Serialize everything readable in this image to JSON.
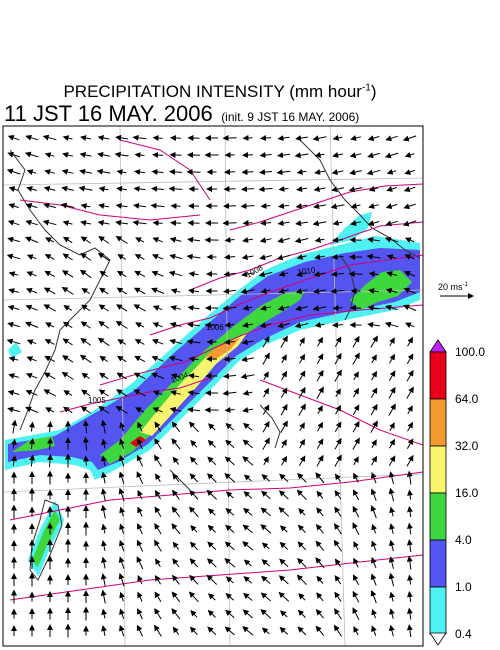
{
  "title": {
    "prefix": "PRECIPITATION INTENSITY (mm hour",
    "exp": "-1",
    "suffix": ")"
  },
  "subtitle": {
    "main": "11 JST 16 MAY. 2006",
    "init": "(init. 9 JST 16 MAY. 2006)"
  },
  "wind_scale": {
    "value": "20 ms",
    "exp": "-1"
  },
  "legend": {
    "levels": [
      "100.0",
      "64.0",
      "32.0",
      "16.0",
      "4.0",
      "1.0",
      "0.4"
    ],
    "colors": [
      "#9b1fe0",
      "#e8001a",
      "#f59a2e",
      "#f7f56e",
      "#3ed83e",
      "#5454f0",
      "#4ef2f2"
    ],
    "over_color": "#c020f0"
  },
  "isobars": {
    "color": "#d0007a",
    "labels": [
      "1010",
      "1008",
      "1006",
      "1004",
      "1005"
    ]
  },
  "map": {
    "land_outline": "coastline",
    "grid": "lat-lon"
  }
}
